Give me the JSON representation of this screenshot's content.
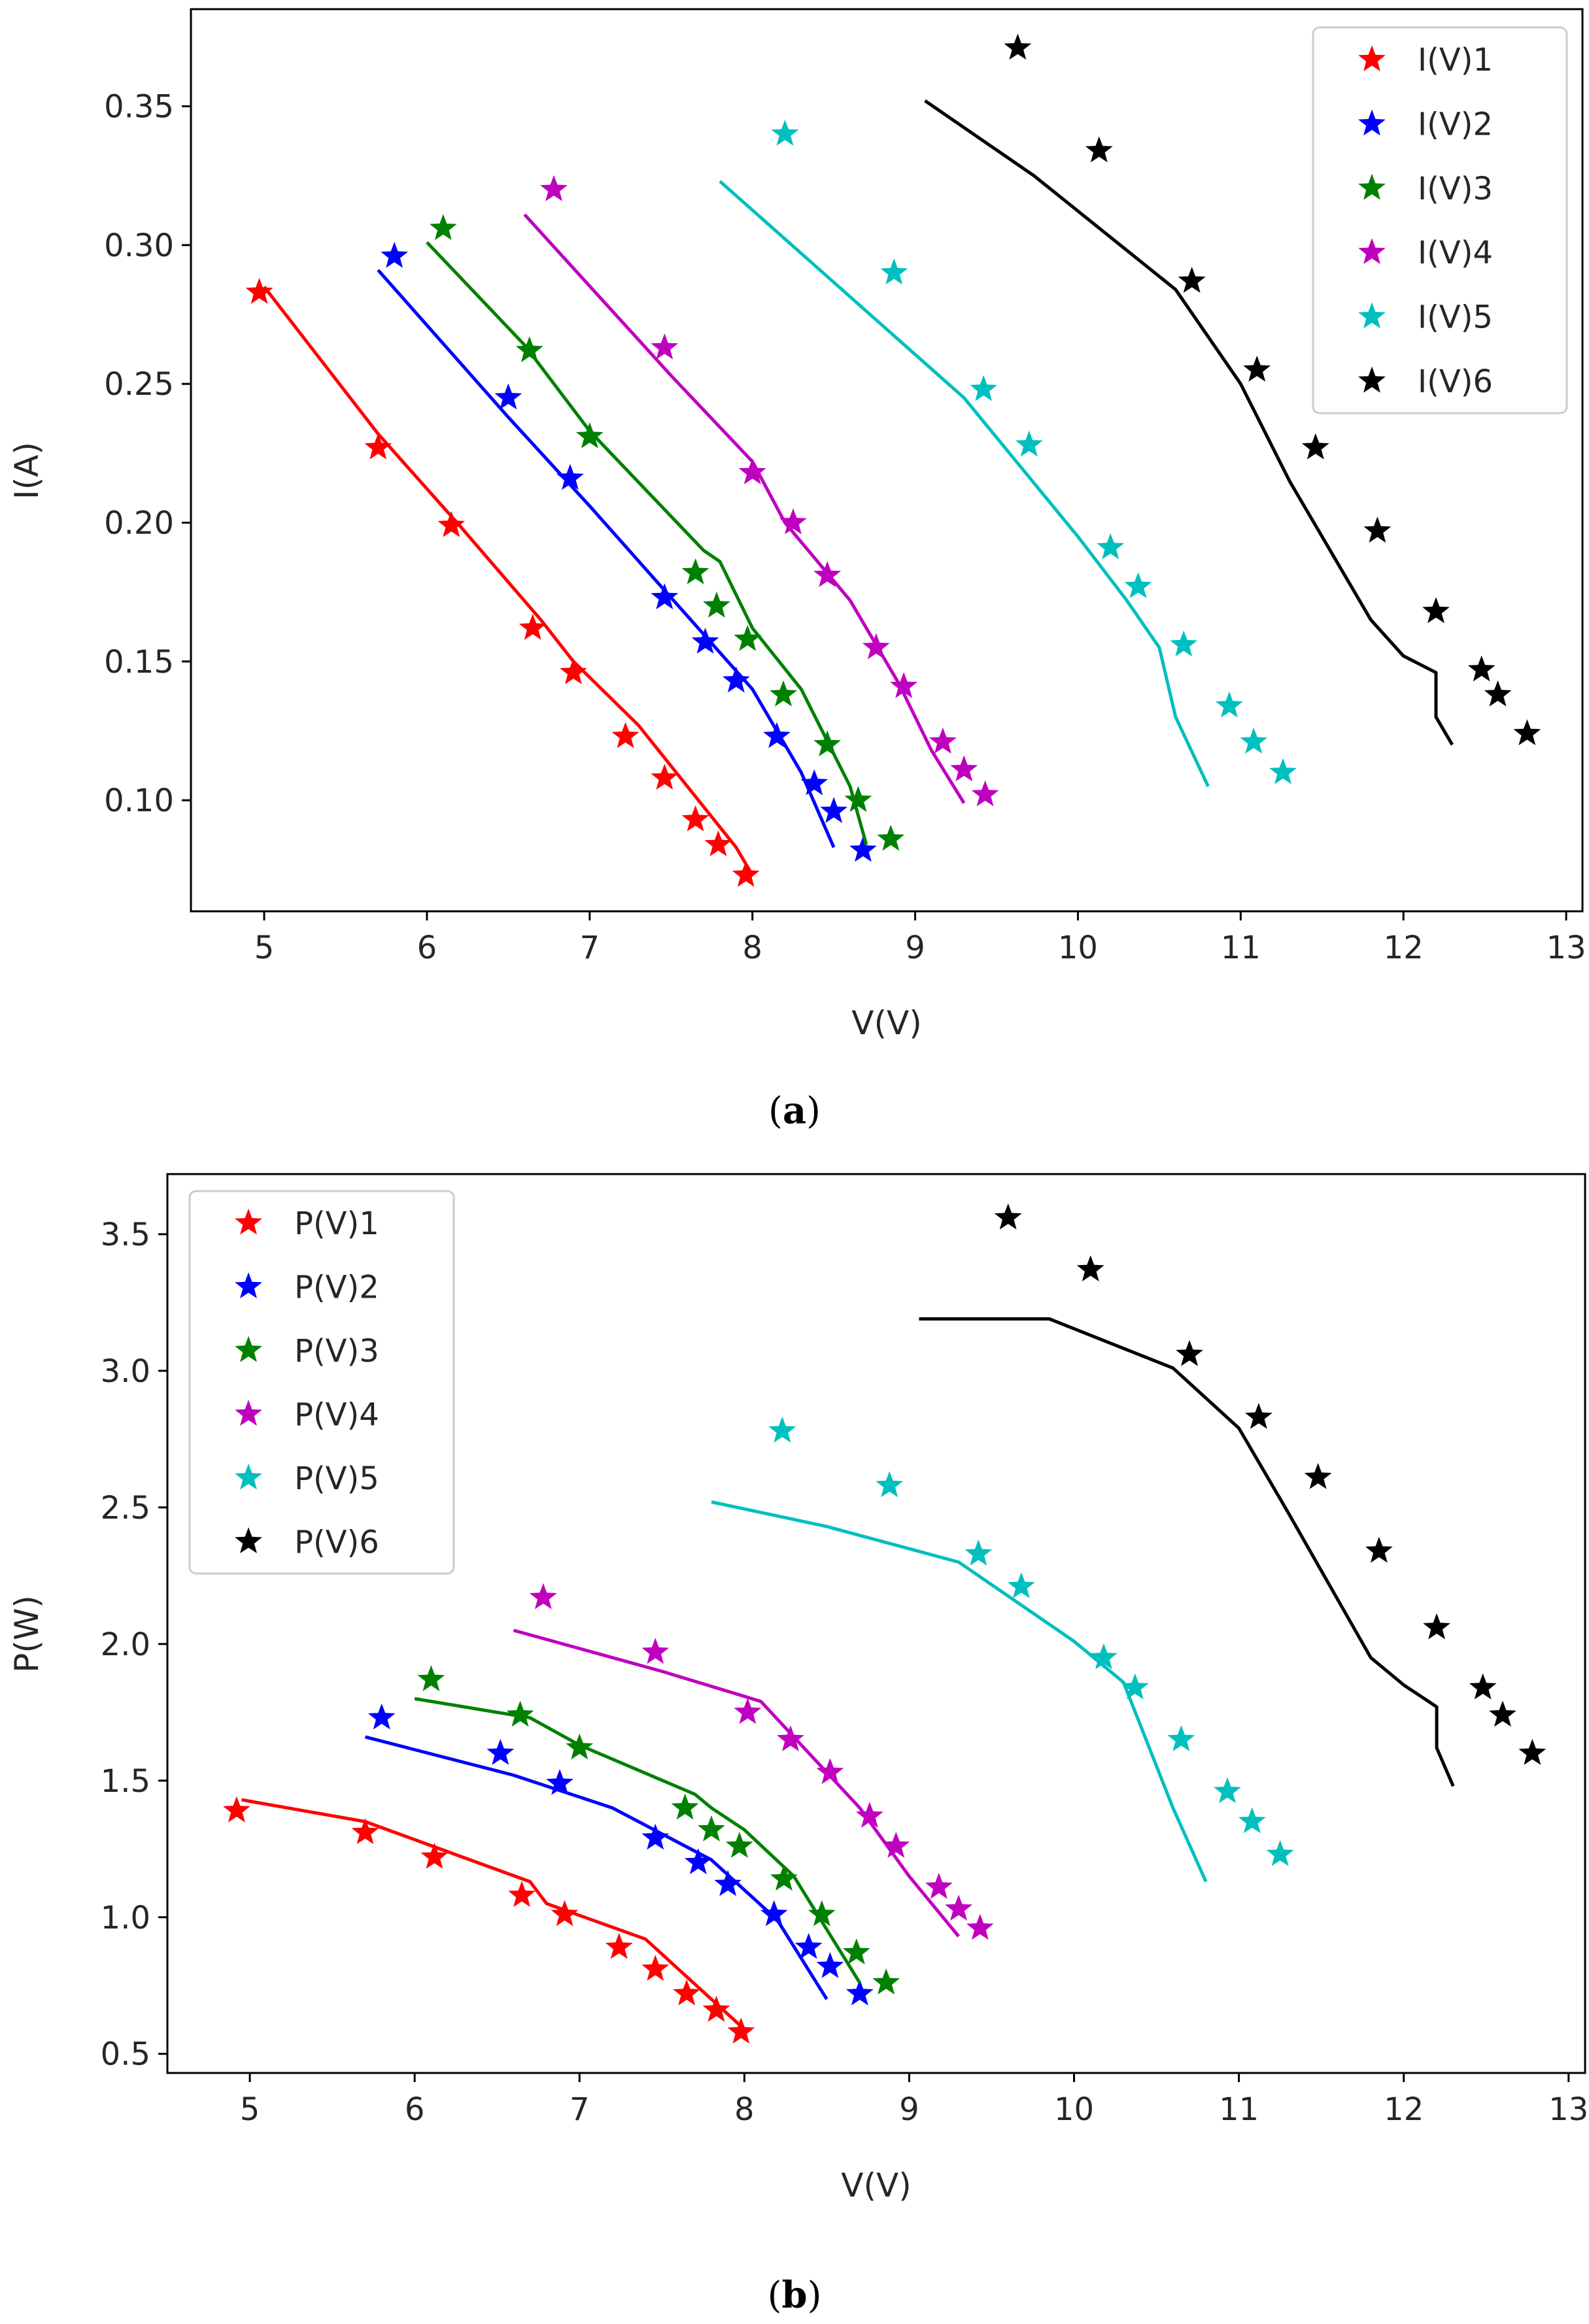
{
  "figure": {
    "captions": [
      {
        "open": "(",
        "label": "a",
        "close": ")"
      },
      {
        "open": "(",
        "label": "b",
        "close": ")"
      }
    ]
  },
  "colors": {
    "series": [
      "#ff0000",
      "#0000ff",
      "#008000",
      "#bf00bf",
      "#00bfbf",
      "#000000"
    ],
    "axis": "#000000",
    "text": "#262626",
    "legend_border": "#cccccc"
  },
  "chart_data": [
    {
      "type": "line+scatter",
      "xlabel": "V(V)",
      "ylabel": "I(A)",
      "xlim": [
        4.55,
        13.1
      ],
      "ylim": [
        0.06,
        0.385
      ],
      "xticks": [
        5,
        6,
        7,
        8,
        9,
        10,
        11,
        12,
        13
      ],
      "xtick_labels": [
        "5",
        "6",
        "7",
        "8",
        "9",
        "10",
        "11",
        "12",
        "13"
      ],
      "yticks": [
        0.1,
        0.15,
        0.2,
        0.25,
        0.3,
        0.35
      ],
      "ytick_labels": [
        "0.10",
        "0.15",
        "0.20",
        "0.25",
        "0.30",
        "0.35"
      ],
      "legend_position": "upper right",
      "series": [
        {
          "name": "I(V)1",
          "markers": {
            "x": [
              4.97,
              5.7,
              6.15,
              6.65,
              6.9,
              7.22,
              7.46,
              7.65,
              7.79,
              7.96
            ],
            "y": [
              0.283,
              0.227,
              0.199,
              0.162,
              0.146,
              0.123,
              0.108,
              0.093,
              0.084,
              0.073
            ]
          },
          "line": {
            "x": [
              5.0,
              5.7,
              6.2,
              6.7,
              6.9,
              7.3,
              7.6,
              7.9,
              8.0
            ],
            "y": [
              0.285,
              0.232,
              0.199,
              0.165,
              0.15,
              0.127,
              0.105,
              0.083,
              0.073
            ]
          }
        },
        {
          "name": "I(V)2",
          "markers": {
            "x": [
              5.8,
              6.5,
              6.88,
              7.46,
              7.71,
              7.9,
              8.15,
              8.38,
              8.5,
              8.68
            ],
            "y": [
              0.296,
              0.245,
              0.216,
              0.173,
              0.157,
              0.143,
              0.123,
              0.106,
              0.096,
              0.082
            ]
          },
          "line": {
            "x": [
              5.7,
              6.5,
              7.0,
              7.5,
              8.0,
              8.3,
              8.5
            ],
            "y": [
              0.291,
              0.238,
              0.206,
              0.173,
              0.14,
              0.11,
              0.083
            ]
          }
        },
        {
          "name": "I(V)3",
          "markers": {
            "x": [
              6.1,
              6.63,
              7.0,
              7.65,
              7.78,
              7.97,
              8.19,
              8.46,
              8.65,
              8.85
            ],
            "y": [
              0.306,
              0.262,
              0.231,
              0.182,
              0.17,
              0.158,
              0.138,
              0.12,
              0.1,
              0.086
            ]
          },
          "line": {
            "x": [
              6.0,
              6.6,
              7.0,
              7.7,
              7.8,
              8.0,
              8.3,
              8.6,
              8.7
            ],
            "y": [
              0.301,
              0.264,
              0.233,
              0.19,
              0.186,
              0.162,
              0.14,
              0.105,
              0.084
            ]
          }
        },
        {
          "name": "I(V)4",
          "markers": {
            "x": [
              6.78,
              7.46,
              8.0,
              8.25,
              8.46,
              8.76,
              8.93,
              9.17,
              9.3,
              9.43
            ],
            "y": [
              0.32,
              0.263,
              0.218,
              0.2,
              0.181,
              0.155,
              0.141,
              0.121,
              0.111,
              0.102
            ]
          },
          "line": {
            "x": [
              6.6,
              7.5,
              8.0,
              8.2,
              8.6,
              8.9,
              9.1,
              9.3
            ],
            "y": [
              0.311,
              0.253,
              0.222,
              0.2,
              0.172,
              0.142,
              0.118,
              0.099
            ]
          }
        },
        {
          "name": "I(V)5",
          "markers": {
            "x": [
              8.2,
              8.87,
              9.42,
              9.7,
              10.2,
              10.37,
              10.65,
              10.93,
              11.08,
              11.26
            ],
            "y": [
              0.34,
              0.29,
              0.248,
              0.228,
              0.191,
              0.177,
              0.156,
              0.134,
              0.121,
              0.11
            ]
          },
          "line": {
            "x": [
              7.8,
              9.3,
              10.0,
              10.3,
              10.5,
              10.6,
              10.8
            ],
            "y": [
              0.323,
              0.245,
              0.195,
              0.172,
              0.155,
              0.13,
              0.105
            ]
          }
        },
        {
          "name": "I(V)6",
          "markers": {
            "x": [
              9.63,
              10.13,
              10.7,
              11.1,
              11.46,
              11.84,
              12.2,
              12.48,
              12.58,
              12.76
            ],
            "y": [
              0.371,
              0.334,
              0.287,
              0.255,
              0.227,
              0.197,
              0.168,
              0.147,
              0.138,
              0.124
            ]
          },
          "line": {
            "x": [
              9.06,
              9.73,
              10.6,
              11.0,
              11.3,
              11.8,
              12.0,
              12.2,
              12.2,
              12.3
            ],
            "y": [
              0.352,
              0.325,
              0.284,
              0.25,
              0.215,
              0.165,
              0.152,
              0.146,
              0.13,
              0.12
            ]
          }
        }
      ]
    },
    {
      "type": "line+scatter",
      "xlabel": "V(V)",
      "ylabel": "P(W)",
      "xlim": [
        4.5,
        13.1
      ],
      "ylim": [
        0.43,
        3.72
      ],
      "xticks": [
        5,
        6,
        7,
        8,
        9,
        10,
        11,
        12,
        13
      ],
      "xtick_labels": [
        "5",
        "6",
        "7",
        "8",
        "9",
        "10",
        "11",
        "12",
        "13"
      ],
      "yticks": [
        0.5,
        1.0,
        1.5,
        2.0,
        2.5,
        3.0,
        3.5
      ],
      "ytick_labels": [
        "0.5",
        "1.0",
        "1.5",
        "2.0",
        "2.5",
        "3.0",
        "3.5"
      ],
      "legend_position": "upper left",
      "series": [
        {
          "name": "P(V)1",
          "markers": {
            "x": [
              4.92,
              5.7,
              6.12,
              6.65,
              6.91,
              7.24,
              7.46,
              7.65,
              7.83,
              7.98
            ],
            "y": [
              1.39,
              1.31,
              1.22,
              1.08,
              1.01,
              0.89,
              0.81,
              0.72,
              0.66,
              0.58
            ]
          },
          "line": {
            "x": [
              4.95,
              5.7,
              6.2,
              6.7,
              6.8,
              7.4,
              7.8,
              8.0
            ],
            "y": [
              1.43,
              1.35,
              1.24,
              1.13,
              1.05,
              0.92,
              0.7,
              0.59
            ]
          }
        },
        {
          "name": "P(V)2",
          "markers": {
            "x": [
              5.8,
              6.52,
              6.88,
              7.46,
              7.72,
              7.9,
              8.18,
              8.39,
              8.52,
              8.7
            ],
            "y": [
              1.73,
              1.6,
              1.49,
              1.29,
              1.2,
              1.12,
              1.01,
              0.89,
              0.82,
              0.72
            ]
          },
          "line": {
            "x": [
              5.7,
              6.6,
              7.2,
              7.8,
              8.2,
              8.5
            ],
            "y": [
              1.66,
              1.52,
              1.4,
              1.21,
              0.99,
              0.7
            ]
          }
        },
        {
          "name": "P(V)3",
          "markers": {
            "x": [
              6.1,
              6.64,
              7.0,
              7.64,
              7.8,
              7.97,
              8.24,
              8.47,
              8.68,
              8.86
            ],
            "y": [
              1.87,
              1.74,
              1.62,
              1.4,
              1.32,
              1.26,
              1.14,
              1.01,
              0.87,
              0.76
            ]
          },
          "line": {
            "x": [
              6.0,
              6.7,
              7.0,
              7.7,
              7.8,
              8.0,
              8.3,
              8.7
            ],
            "y": [
              1.8,
              1.73,
              1.63,
              1.45,
              1.4,
              1.32,
              1.15,
              0.76
            ]
          }
        },
        {
          "name": "P(V)4",
          "markers": {
            "x": [
              6.78,
              7.46,
              8.02,
              8.28,
              8.52,
              8.76,
              8.92,
              9.18,
              9.3,
              9.43
            ],
            "y": [
              2.17,
              1.97,
              1.75,
              1.65,
              1.53,
              1.37,
              1.26,
              1.11,
              1.03,
              0.96
            ]
          },
          "line": {
            "x": [
              6.6,
              7.5,
              8.1,
              8.7,
              9.0,
              9.3
            ],
            "y": [
              2.05,
              1.9,
              1.79,
              1.4,
              1.15,
              0.93
            ]
          }
        },
        {
          "name": "P(V)5",
          "markers": {
            "x": [
              8.23,
              8.88,
              9.42,
              9.68,
              10.18,
              10.37,
              10.65,
              10.93,
              11.08,
              11.25
            ],
            "y": [
              2.78,
              2.58,
              2.33,
              2.21,
              1.95,
              1.84,
              1.65,
              1.46,
              1.35,
              1.23
            ]
          },
          "line": {
            "x": [
              7.8,
              8.5,
              9.3,
              10.0,
              10.3,
              10.6,
              10.8
            ],
            "y": [
              2.52,
              2.43,
              2.3,
              2.01,
              1.86,
              1.4,
              1.13
            ]
          }
        },
        {
          "name": "P(V)6",
          "markers": {
            "x": [
              9.6,
              10.1,
              10.7,
              11.12,
              11.48,
              11.85,
              12.2,
              12.48,
              12.6,
              12.78
            ],
            "y": [
              3.56,
              3.37,
              3.06,
              2.83,
              2.61,
              2.34,
              2.06,
              1.84,
              1.74,
              1.6
            ]
          },
          "line": {
            "x": [
              9.06,
              9.85,
              10.6,
              11.0,
              11.3,
              11.8,
              12.0,
              12.2,
              12.2,
              12.3
            ],
            "y": [
              3.19,
              3.19,
              3.01,
              2.79,
              2.48,
              1.95,
              1.85,
              1.77,
              1.62,
              1.48
            ]
          }
        }
      ]
    }
  ]
}
